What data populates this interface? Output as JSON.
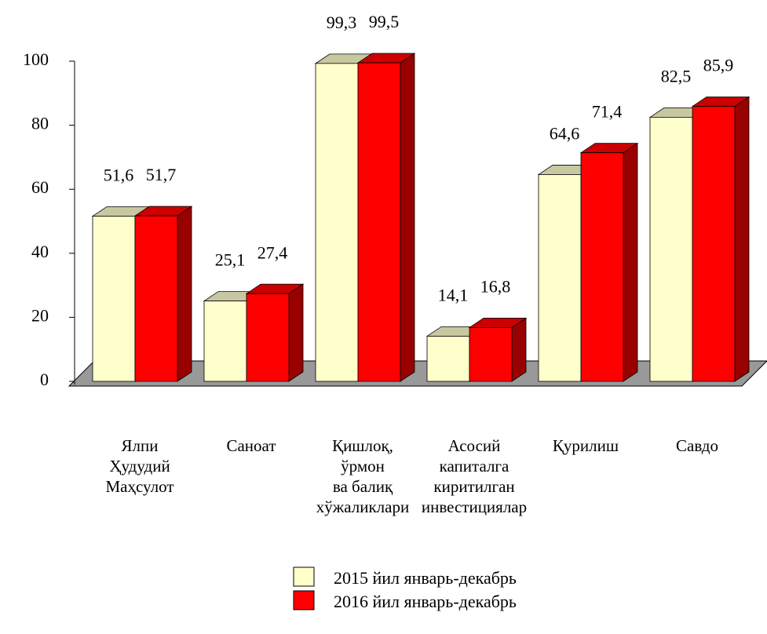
{
  "chart_data": {
    "type": "bar3d",
    "categories": [
      "Ялпи\nҲудудий\nМаҳсулот",
      "Саноат",
      "Қишлоқ,\nўрмон\nва балиқ\nхўжаликлари",
      "Асосий\nкапиталга\nкиритилган\nинвестициялар",
      "Қурилиш",
      "Савдо"
    ],
    "series": [
      {
        "name": "2015 йил январь-декабрь",
        "color": "#ffffcc",
        "values": [
          51.6,
          25.1,
          99.3,
          14.1,
          64.6,
          82.5
        ],
        "value_labels": [
          "51,6",
          "25,1",
          "99,3",
          "14,1",
          "64,6",
          "82,5"
        ]
      },
      {
        "name": "2016 йил январь-декабрь",
        "color": "#ff0000",
        "values": [
          51.7,
          27.4,
          99.5,
          16.8,
          71.4,
          85.9
        ],
        "value_labels": [
          "51,7",
          "27,4",
          "99,5",
          "16,8",
          "71,4",
          "85,9"
        ]
      }
    ],
    "ylim": [
      0,
      100
    ],
    "yticks": [
      0,
      20,
      40,
      60,
      80,
      100
    ]
  }
}
